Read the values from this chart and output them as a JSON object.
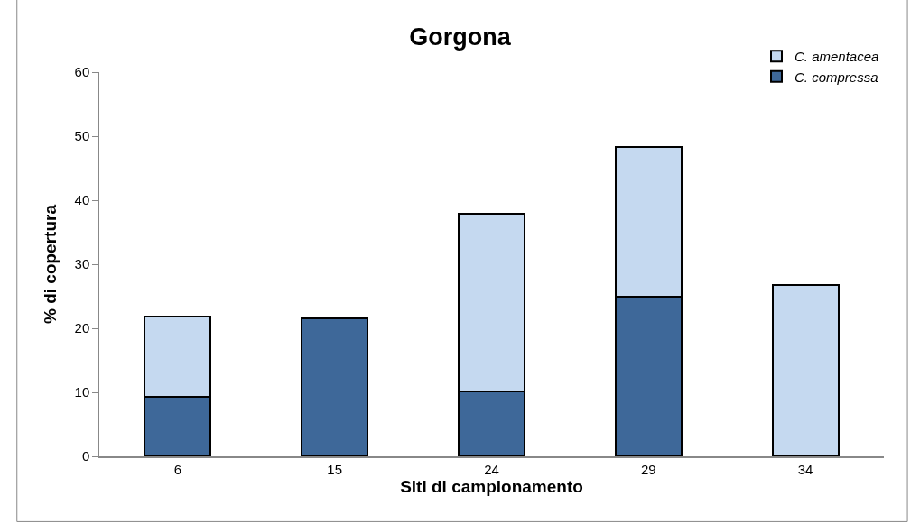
{
  "chart_data": {
    "type": "bar",
    "title": "Gorgona",
    "xlabel": "Siti di campionamento",
    "ylabel": "% di copertura",
    "categories": [
      "6",
      "15",
      "24",
      "29",
      "34"
    ],
    "stacked": true,
    "ylim": [
      0,
      60
    ],
    "yticks": [
      0,
      10,
      20,
      30,
      40,
      50,
      60
    ],
    "legend": "top right",
    "series": [
      {
        "name": "C. compressa",
        "color": "#3e6899",
        "values": [
          9.3,
          21.6,
          10.1,
          25.0,
          0
        ]
      },
      {
        "name": "C. amentacea",
        "color": "#c5d9f0",
        "values": [
          12.6,
          0,
          27.8,
          23.3,
          26.7
        ]
      }
    ]
  }
}
